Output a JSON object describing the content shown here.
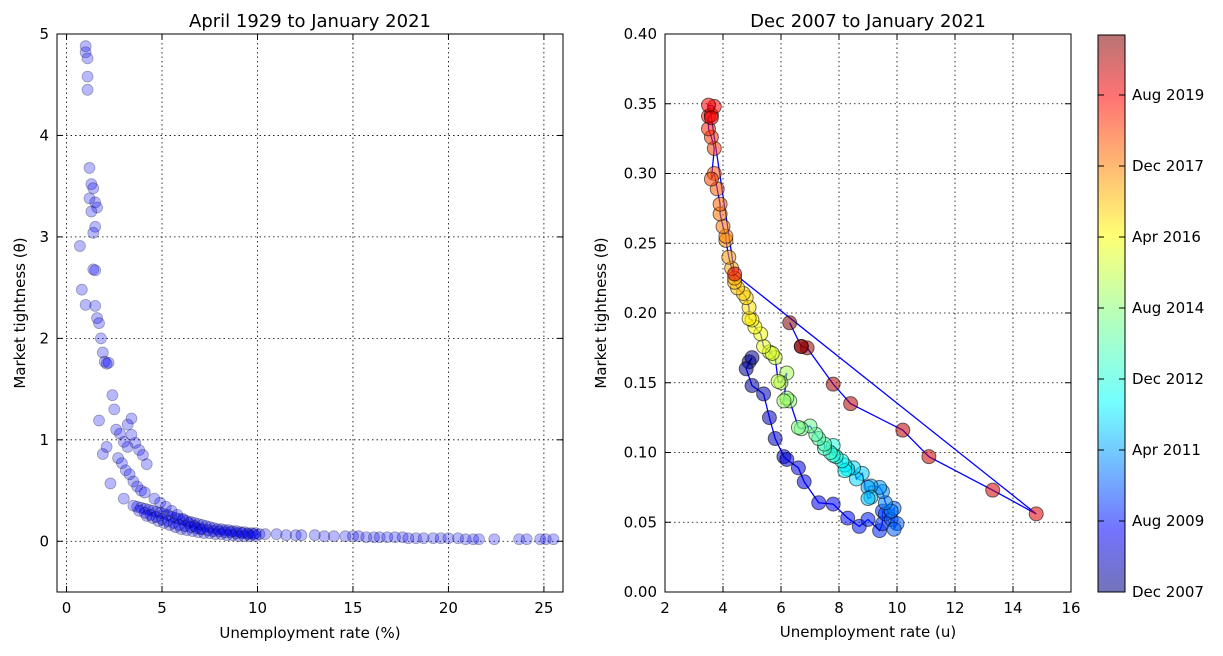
{
  "chart_data": [
    {
      "type": "scatter",
      "title": "April 1929 to January 2021",
      "xlabel": "Unemployment rate (%)",
      "ylabel": "Market tightness (θ)",
      "xlim": [
        -0.5,
        26
      ],
      "ylim": [
        -0.5,
        5
      ],
      "xticks": [
        0,
        5,
        10,
        15,
        20,
        25
      ],
      "yticks": [
        0,
        1,
        2,
        3,
        4,
        5
      ],
      "grid": true,
      "marker_color": "#0000ff",
      "series": [
        {
          "x": [
            1.0,
            1.0,
            1.1,
            1.1,
            1.1,
            0.7,
            0.8,
            1.0,
            1.2,
            1.3,
            1.4,
            1.5,
            1.6,
            1.2,
            1.3,
            1.5,
            1.4,
            1.4,
            1.5,
            1.5,
            1.6,
            1.7,
            1.8,
            1.9,
            2.0,
            2.1,
            2.2,
            2.4,
            2.5,
            1.7,
            1.9,
            2.1,
            2.3,
            2.6,
            2.8,
            3.0,
            3.2,
            3.4,
            2.7,
            2.9,
            3.1,
            3.3,
            3.5,
            3.7,
            3.9,
            4.1,
            3.0,
            3.2,
            3.4,
            3.6,
            3.8,
            4.0,
            4.2,
            3.5,
            3.7,
            3.9,
            4.1,
            4.3,
            4.5,
            4.7,
            4.9,
            5.1,
            5.3,
            5.5,
            5.7,
            5.9,
            6.1,
            6.3,
            6.5,
            6.7,
            6.9,
            7.1,
            7.3,
            7.5,
            7.7,
            7.9,
            8.1,
            8.3,
            8.5,
            8.7,
            8.9,
            9.1,
            9.3,
            9.5,
            9.7,
            9.9,
            10.1,
            10.4,
            11.0,
            11.5,
            12.0,
            12.3,
            13.0,
            13.5,
            14.0,
            14.6,
            15.0,
            15.3,
            15.7,
            16.1,
            16.4,
            16.8,
            17.2,
            17.6,
            17.9,
            18.3,
            18.7,
            19.2,
            19.6,
            20.0,
            20.5,
            20.9,
            21.3,
            21.6,
            22.4,
            23.7,
            24.1,
            24.8,
            25.1,
            25.5,
            4.6,
            4.9,
            5.2,
            5.5,
            5.8,
            6.1,
            6.4,
            6.7,
            7.0,
            4.2,
            4.5,
            4.8,
            5.1,
            5.4,
            5.7,
            6.0,
            6.3,
            6.6,
            6.9,
            7.2,
            7.5,
            7.8,
            8.1,
            8.4,
            8.7,
            9.0,
            9.3,
            9.6,
            9.9,
            3.8,
            4.1,
            4.4,
            4.7,
            5.0,
            5.3,
            5.6,
            5.9,
            6.2,
            6.5,
            6.8,
            7.1,
            7.4,
            7.7,
            8.0,
            8.3,
            8.6,
            8.9,
            9.2,
            9.5,
            9.8
          ],
          "y": [
            4.88,
            4.82,
            4.76,
            4.58,
            4.45,
            2.91,
            2.48,
            2.33,
            3.68,
            3.52,
            3.48,
            3.34,
            3.29,
            3.38,
            3.25,
            3.1,
            3.04,
            2.68,
            2.67,
            2.32,
            2.2,
            2.15,
            2.0,
            1.86,
            1.77,
            1.75,
            1.76,
            1.44,
            1.3,
            1.19,
            0.86,
            0.93,
            0.57,
            1.1,
            1.06,
            0.98,
            0.93,
            1.21,
            0.82,
            0.77,
            0.7,
            0.66,
            0.59,
            0.54,
            0.5,
            0.48,
            0.42,
            1.15,
            1.05,
            0.97,
            0.9,
            0.85,
            0.76,
            0.35,
            0.34,
            0.33,
            0.32,
            0.31,
            0.3,
            0.29,
            0.28,
            0.27,
            0.26,
            0.24,
            0.23,
            0.22,
            0.21,
            0.2,
            0.19,
            0.18,
            0.17,
            0.16,
            0.15,
            0.14,
            0.13,
            0.12,
            0.12,
            0.11,
            0.11,
            0.1,
            0.1,
            0.09,
            0.09,
            0.08,
            0.08,
            0.08,
            0.07,
            0.07,
            0.07,
            0.06,
            0.06,
            0.06,
            0.06,
            0.05,
            0.05,
            0.05,
            0.05,
            0.05,
            0.04,
            0.04,
            0.04,
            0.04,
            0.04,
            0.04,
            0.03,
            0.03,
            0.03,
            0.03,
            0.03,
            0.03,
            0.03,
            0.02,
            0.02,
            0.02,
            0.02,
            0.02,
            0.02,
            0.02,
            0.02,
            0.02,
            0.42,
            0.38,
            0.34,
            0.3,
            0.26,
            0.22,
            0.18,
            0.15,
            0.12,
            0.25,
            0.23,
            0.2,
            0.18,
            0.16,
            0.14,
            0.12,
            0.11,
            0.1,
            0.09,
            0.08,
            0.08,
            0.07,
            0.07,
            0.06,
            0.06,
            0.05,
            0.05,
            0.05,
            0.05,
            0.3,
            0.28,
            0.26,
            0.24,
            0.22,
            0.2,
            0.18,
            0.16,
            0.15,
            0.14,
            0.13,
            0.12,
            0.11,
            0.1,
            0.1,
            0.09,
            0.09,
            0.08,
            0.08,
            0.07,
            0.07
          ]
        }
      ]
    },
    {
      "type": "scatter",
      "title": "Dec 2007 to January 2021",
      "xlabel": "Unemployment rate (u)",
      "ylabel": "Market tightness (θ)",
      "xlim": [
        2,
        16
      ],
      "ylim": [
        0.0,
        0.4
      ],
      "xticks": [
        2,
        4,
        6,
        8,
        10,
        12,
        14,
        16
      ],
      "yticks": [
        0.0,
        0.05,
        0.1,
        0.15,
        0.2,
        0.25,
        0.3,
        0.35,
        0.4
      ],
      "ytick_labels": [
        "0.00",
        "0.05",
        "0.10",
        "0.15",
        "0.20",
        "0.25",
        "0.30",
        "0.35",
        "0.40"
      ],
      "grid": true,
      "colormap": "jet",
      "line_color": "#0000ff",
      "colorbar": {
        "ticks": [
          "Dec 2007",
          "Aug 2009",
          "Apr 2011",
          "Dec 2012",
          "Aug 2014",
          "Apr 2016",
          "Dec 2017",
          "Aug 2019"
        ]
      },
      "series": [
        {
          "x": [
            4.9,
            5.0,
            4.8,
            5.0,
            5.4,
            5.6,
            5.8,
            6.1,
            6.2,
            6.6,
            6.8,
            7.3,
            7.8,
            8.3,
            8.7,
            9.0,
            9.4,
            9.5,
            9.5,
            9.6,
            9.8,
            10.0,
            9.9,
            9.9,
            9.8,
            9.6,
            9.5,
            9.4,
            9.1,
            9.0,
            9.1,
            9.0,
            8.8,
            8.6,
            8.5,
            8.3,
            8.2,
            8.2,
            8.1,
            7.9,
            7.8,
            7.8,
            7.7,
            7.5,
            7.5,
            7.3,
            7.2,
            7.0,
            6.7,
            6.6,
            6.3,
            6.2,
            6.1,
            6.2,
            6.0,
            5.9,
            5.8,
            5.6,
            5.7,
            5.4,
            5.3,
            5.1,
            5.0,
            4.9,
            4.9,
            4.8,
            4.7,
            4.5,
            4.4,
            4.4,
            4.3,
            4.2,
            4.1,
            4.1,
            4.0,
            3.9,
            3.9,
            3.8,
            3.7,
            3.6,
            3.7,
            3.6,
            3.5,
            3.5,
            3.6,
            3.7,
            3.5,
            3.6,
            4.4,
            14.8,
            13.3,
            11.1,
            10.2,
            8.4,
            7.8,
            6.9,
            6.7,
            6.7,
            6.3
          ],
          "y": [
            0.165,
            0.168,
            0.16,
            0.148,
            0.142,
            0.125,
            0.11,
            0.097,
            0.095,
            0.089,
            0.079,
            0.064,
            0.063,
            0.053,
            0.047,
            0.052,
            0.044,
            0.049,
            0.058,
            0.056,
            0.052,
            0.049,
            0.045,
            0.06,
            0.058,
            0.064,
            0.072,
            0.075,
            0.076,
            0.075,
            0.068,
            0.067,
            0.085,
            0.081,
            0.089,
            0.088,
            0.091,
            0.087,
            0.094,
            0.097,
            0.105,
            0.098,
            0.1,
            0.103,
            0.106,
            0.11,
            0.113,
            0.119,
            0.117,
            0.118,
            0.137,
            0.139,
            0.137,
            0.157,
            0.15,
            0.151,
            0.168,
            0.172,
            0.171,
            0.176,
            0.185,
            0.19,
            0.195,
            0.196,
            0.204,
            0.211,
            0.214,
            0.218,
            0.222,
            0.225,
            0.232,
            0.24,
            0.252,
            0.255,
            0.262,
            0.271,
            0.278,
            0.289,
            0.3,
            0.296,
            0.318,
            0.326,
            0.332,
            0.341,
            0.342,
            0.348,
            0.349,
            0.34,
            0.228,
            0.056,
            0.073,
            0.097,
            0.116,
            0.135,
            0.149,
            0.175,
            0.176,
            0.176,
            0.193
          ]
        }
      ]
    }
  ]
}
